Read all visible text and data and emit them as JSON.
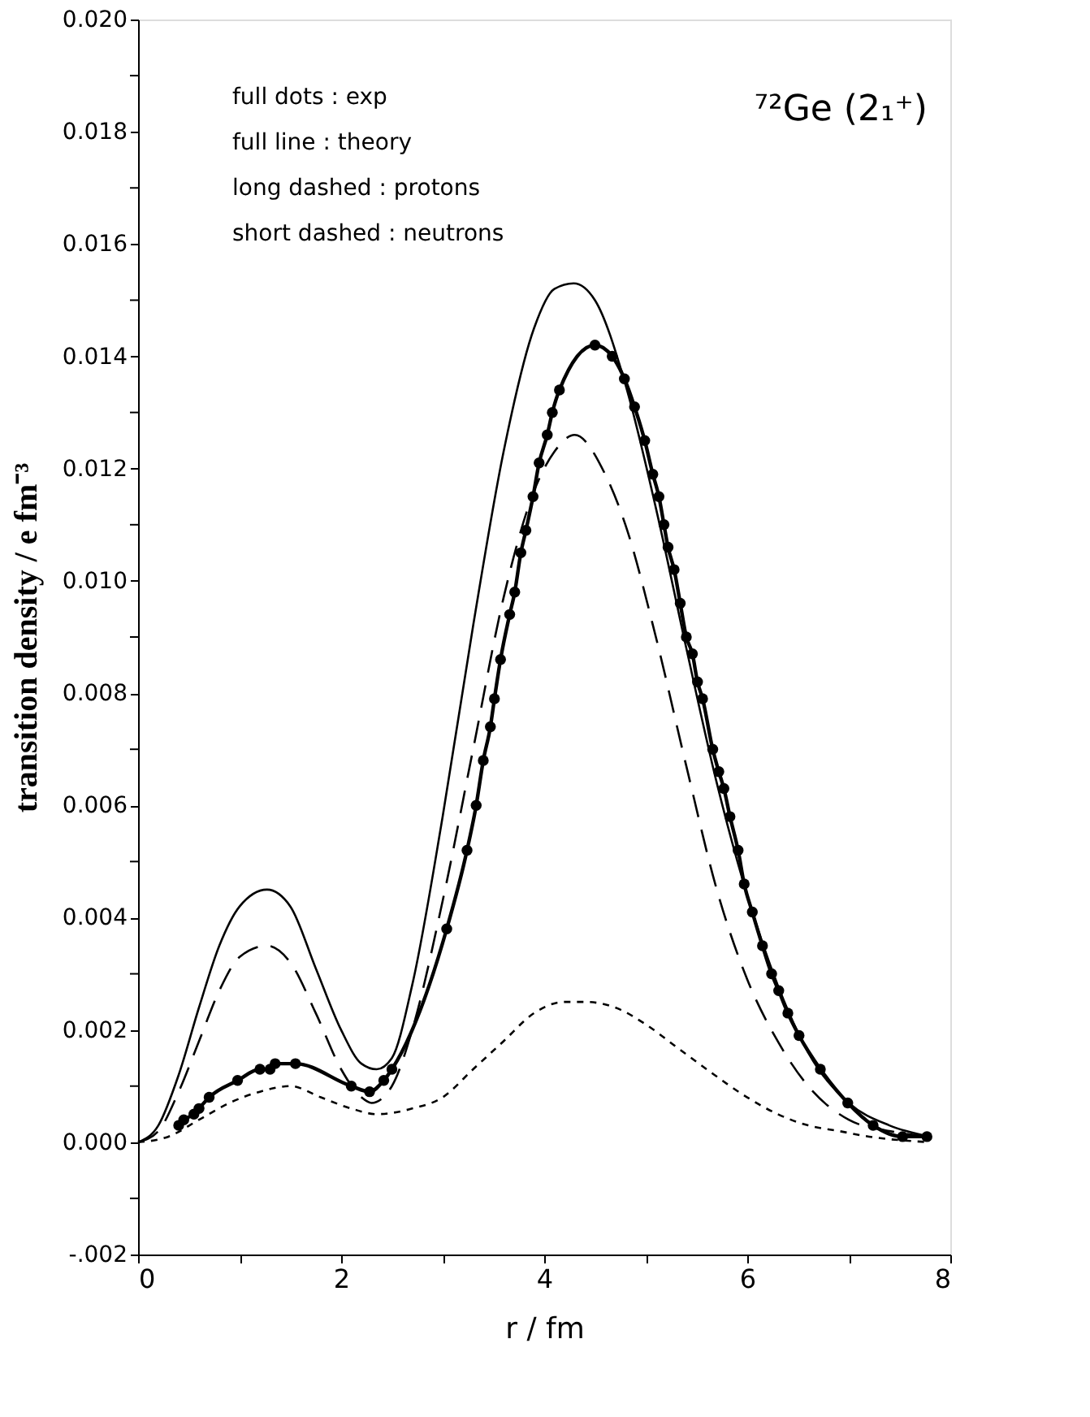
{
  "chart_data": {
    "type": "line",
    "title": "⁷²Ge (2₁⁺)",
    "xlabel": "r / fm",
    "ylabel": "transition density / e fm⁻³",
    "annotations": [
      "full dots : exp",
      "full line : theory",
      "long dashed : protons",
      "short dashed : neutrons"
    ],
    "xlim": [
      0,
      8
    ],
    "ylim": [
      -0.002,
      0.02
    ],
    "xticks": [
      0,
      {
        "value": 1,
        "label": null
      },
      2,
      {
        "value": 3,
        "label": null
      },
      4,
      {
        "value": 5,
        "label": null
      },
      6,
      {
        "value": 7,
        "label": null
      },
      8
    ],
    "yticks": [
      {
        "value": -0.002,
        "label": "-.002"
      },
      {
        "value": -0.001,
        "label": null
      },
      {
        "value": 0,
        "label": "0.000"
      },
      {
        "value": 0.001,
        "label": null
      },
      {
        "value": 0.002,
        "label": "0.002"
      },
      {
        "value": 0.003,
        "label": null
      },
      {
        "value": 0.004,
        "label": "0.004"
      },
      {
        "value": 0.005,
        "label": null
      },
      {
        "value": 0.006,
        "label": "0.006"
      },
      {
        "value": 0.007,
        "label": null
      },
      {
        "value": 0.008,
        "label": "0.008"
      },
      {
        "value": 0.009,
        "label": null
      },
      {
        "value": 0.01,
        "label": "0.010"
      },
      {
        "value": 0.011,
        "label": null
      },
      {
        "value": 0.012,
        "label": "0.012"
      },
      {
        "value": 0.013,
        "label": null
      },
      {
        "value": 0.014,
        "label": "0.014"
      },
      {
        "value": 0.015,
        "label": null
      },
      {
        "value": 0.016,
        "label": "0.016"
      },
      {
        "value": 0.017,
        "label": null
      },
      {
        "value": 0.018,
        "label": "0.018"
      },
      {
        "value": 0.019,
        "label": null
      },
      {
        "value": 0.02,
        "label": "0.020"
      }
    ],
    "grid": false,
    "series": [
      {
        "color": "#000000",
        "line_style": "solid",
        "marker": "none",
        "x": [
          0,
          0.2,
          0.4,
          0.6,
          0.8,
          1.0,
          1.27,
          1.5,
          1.75,
          2.0,
          2.2,
          2.35,
          2.5,
          2.7,
          3.0,
          3.3,
          3.6,
          3.9,
          4.1,
          4.29,
          4.5,
          4.8,
          5.1,
          5.4,
          5.7,
          6.0,
          6.3,
          6.6,
          7.0,
          7.4,
          7.8
        ],
        "values": [
          0,
          0.0003,
          0.0012,
          0.0024,
          0.0035,
          0.0042,
          0.0045,
          0.0042,
          0.0031,
          0.002,
          0.0014,
          0.0013,
          0.0015,
          0.0028,
          0.0058,
          0.0092,
          0.0123,
          0.0145,
          0.0152,
          0.0153,
          0.015,
          0.0135,
          0.0113,
          0.0088,
          0.0064,
          0.0044,
          0.0028,
          0.0016,
          0.0007,
          0.0003,
          0.0001
        ]
      },
      {
        "color": "#000000",
        "line_style": "solid",
        "marker": "circle",
        "x": [
          0.4,
          0.45,
          0.55,
          0.6,
          0.7,
          0.98,
          1.2,
          1.3,
          1.35,
          1.55,
          2.1,
          2.28,
          2.42,
          2.5,
          3.04,
          3.24,
          3.33,
          3.4,
          3.47,
          3.51,
          3.57,
          3.66,
          3.71,
          3.77,
          3.82,
          3.89,
          3.95,
          4.03,
          4.08,
          4.15,
          4.5,
          4.67,
          4.79,
          4.89,
          4.99,
          5.07,
          5.13,
          5.18,
          5.22,
          5.28,
          5.34,
          5.4,
          5.46,
          5.51,
          5.56,
          5.66,
          5.72,
          5.77,
          5.83,
          5.91,
          5.97,
          6.05,
          6.15,
          6.24,
          6.31,
          6.4,
          6.51,
          6.72,
          6.99,
          7.24,
          7.53,
          7.77
        ],
        "values": [
          0.0003,
          0.0004,
          0.0005,
          0.0006,
          0.0008,
          0.0011,
          0.0013,
          0.0013,
          0.0014,
          0.0014,
          0.001,
          0.0009,
          0.0011,
          0.0013,
          0.0038,
          0.0052,
          0.006,
          0.0068,
          0.0074,
          0.0079,
          0.0086,
          0.0094,
          0.0098,
          0.0105,
          0.0109,
          0.0115,
          0.0121,
          0.0126,
          0.013,
          0.0134,
          0.0142,
          0.014,
          0.0136,
          0.0131,
          0.0125,
          0.0119,
          0.0115,
          0.011,
          0.0106,
          0.0102,
          0.0096,
          0.009,
          0.0087,
          0.0082,
          0.0079,
          0.007,
          0.0066,
          0.0063,
          0.0058,
          0.0052,
          0.0046,
          0.0041,
          0.0035,
          0.003,
          0.0027,
          0.0023,
          0.0019,
          0.0013,
          0.0007,
          0.0003,
          0.0001,
          0.0001
        ]
      },
      {
        "color": "#000000",
        "line_style": "dashed",
        "marker": "none",
        "x": [
          0,
          0.2,
          0.4,
          0.6,
          0.8,
          1.0,
          1.27,
          1.5,
          1.75,
          2.0,
          2.2,
          2.3,
          2.5,
          2.7,
          3.0,
          3.3,
          3.6,
          3.9,
          4.1,
          4.3,
          4.6,
          4.8,
          5.1,
          5.4,
          5.7,
          6.0,
          6.3,
          6.6,
          7.0,
          7.4,
          7.8
        ],
        "values": [
          0,
          0.0002,
          0.0009,
          0.0018,
          0.0027,
          0.0033,
          0.0035,
          0.0032,
          0.0023,
          0.0013,
          0.0008,
          0.0007,
          0.001,
          0.002,
          0.0043,
          0.007,
          0.0097,
          0.0116,
          0.0123,
          0.0126,
          0.0119,
          0.011,
          0.009,
          0.0067,
          0.0045,
          0.0029,
          0.0018,
          0.001,
          0.0004,
          0.0002,
          0.0001
        ]
      },
      {
        "color": "#000000",
        "line_style": "dotted",
        "marker": "none",
        "x": [
          0,
          0.3,
          0.6,
          0.9,
          1.2,
          1.5,
          1.8,
          2.1,
          2.35,
          2.7,
          3.0,
          3.3,
          3.6,
          3.9,
          4.2,
          4.4,
          4.7,
          5.0,
          5.3,
          5.6,
          6.0,
          6.3,
          6.6,
          6.9,
          7.2,
          7.8
        ],
        "values": [
          0,
          0.0001,
          0.0004,
          0.0007,
          0.0009,
          0.001,
          0.0008,
          0.0006,
          0.0005,
          0.0006,
          0.0008,
          0.0013,
          0.0018,
          0.0023,
          0.0025,
          0.0025,
          0.0024,
          0.0021,
          0.0017,
          0.0013,
          0.0008,
          0.0005,
          0.0003,
          0.0002,
          0.0001,
          0.0
        ]
      }
    ]
  }
}
